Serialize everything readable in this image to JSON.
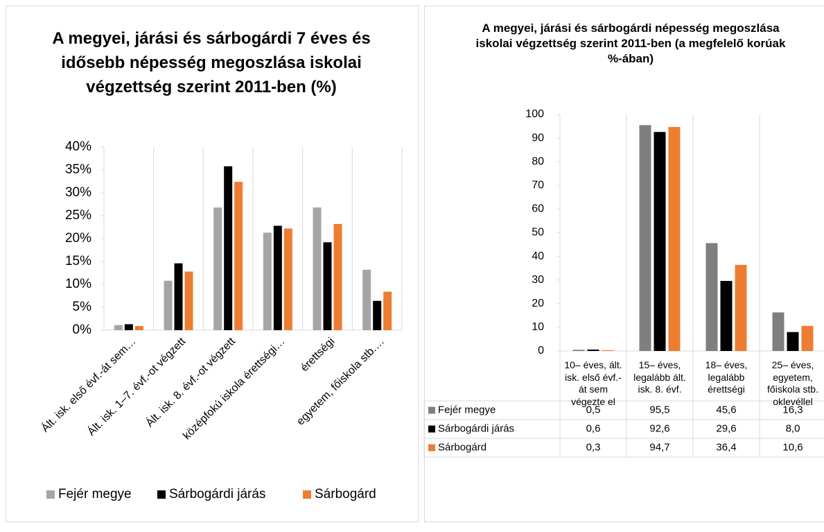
{
  "chart_data": [
    {
      "type": "bar",
      "title": "A megyei, járási és sárbogárdi 7 éves és idősebb népesség megoszlása iskolai végzettség szerint 2011-ben (%)",
      "categories": [
        "Ált. isk. első évf.-át sem…",
        "Ált. isk. 1–7. évf.-ot végzett",
        "Ált. isk. 8. évf.-ot végzett",
        "középfokú iskola érettségi…",
        "érettségi",
        "egyetem, főiskola stb.…"
      ],
      "series": [
        {
          "name": "Fejér megye",
          "color": "#a5a5a5",
          "values": [
            1.1,
            10.8,
            26.8,
            21.3,
            26.8,
            13.2
          ]
        },
        {
          "name": "Sárbogárdi járás",
          "color": "#000000",
          "values": [
            1.3,
            14.6,
            35.8,
            22.8,
            19.2,
            6.4
          ]
        },
        {
          "name": "Sárbogárd",
          "color": "#ed7d31",
          "values": [
            0.9,
            12.8,
            32.4,
            22.2,
            23.2,
            8.4
          ]
        }
      ],
      "ylim": [
        0,
        40
      ],
      "yticks": [
        {
          "value": 0,
          "label": "0%"
        },
        {
          "value": 5,
          "label": "5%"
        },
        {
          "value": 10,
          "label": "10%"
        },
        {
          "value": 15,
          "label": "15%"
        },
        {
          "value": 20,
          "label": "20%"
        },
        {
          "value": 25,
          "label": "25%"
        },
        {
          "value": 30,
          "label": "30%"
        },
        {
          "value": 35,
          "label": "35%"
        },
        {
          "value": 40,
          "label": "40%"
        }
      ],
      "legend": "bottom"
    },
    {
      "type": "bar",
      "title": "A megyei, járási és sárbogárdi népesség megoszlása iskolai végzettség szerint 2011-ben (a megfelelő korúak %-ában)",
      "categories": [
        "10– éves, ált. isk. első évf.-át sem végezte el",
        "15– éves, legalább ált. isk. 8. évf.",
        "18– éves, legalább érettségi",
        "25– éves, egyetem, főiskola stb. oklevéllel"
      ],
      "series": [
        {
          "name": "Fejér megye",
          "color": "#7f7f7f",
          "values": [
            0.5,
            95.5,
            45.6,
            16.3
          ],
          "value_labels": [
            "0,5",
            "95,5",
            "45,6",
            "16,3"
          ]
        },
        {
          "name": "Sárbogárdi járás",
          "color": "#000000",
          "values": [
            0.6,
            92.6,
            29.6,
            8.0
          ],
          "value_labels": [
            "0,6",
            "92,6",
            "29,6",
            "8,0"
          ]
        },
        {
          "name": "Sárbogárd",
          "color": "#ed7d31",
          "values": [
            0.3,
            94.7,
            36.4,
            10.6
          ],
          "value_labels": [
            "0,3",
            "94,7",
            "36,4",
            "10,6"
          ]
        }
      ],
      "ylim": [
        0,
        100
      ],
      "yticks": [
        0,
        10,
        20,
        30,
        40,
        50,
        60,
        70,
        80,
        90,
        100
      ],
      "data_table": true
    }
  ]
}
